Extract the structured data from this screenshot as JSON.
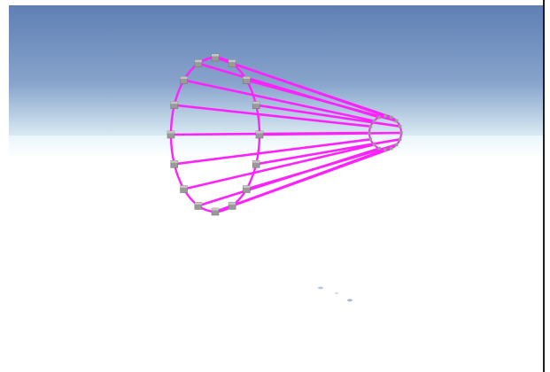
{
  "scene": {
    "sky_top_color": "#5f7fb4",
    "sky_mid_color": "#88a4cc",
    "horizon_color": "#d8eaf2",
    "ground_color": "#ffffff",
    "wire_color": "#ff22ff",
    "node_color": "#9a9a9a",
    "node_top_color": "#c6c6c6",
    "node_count_large_ring": 16,
    "node_count_small_ring": 16
  }
}
